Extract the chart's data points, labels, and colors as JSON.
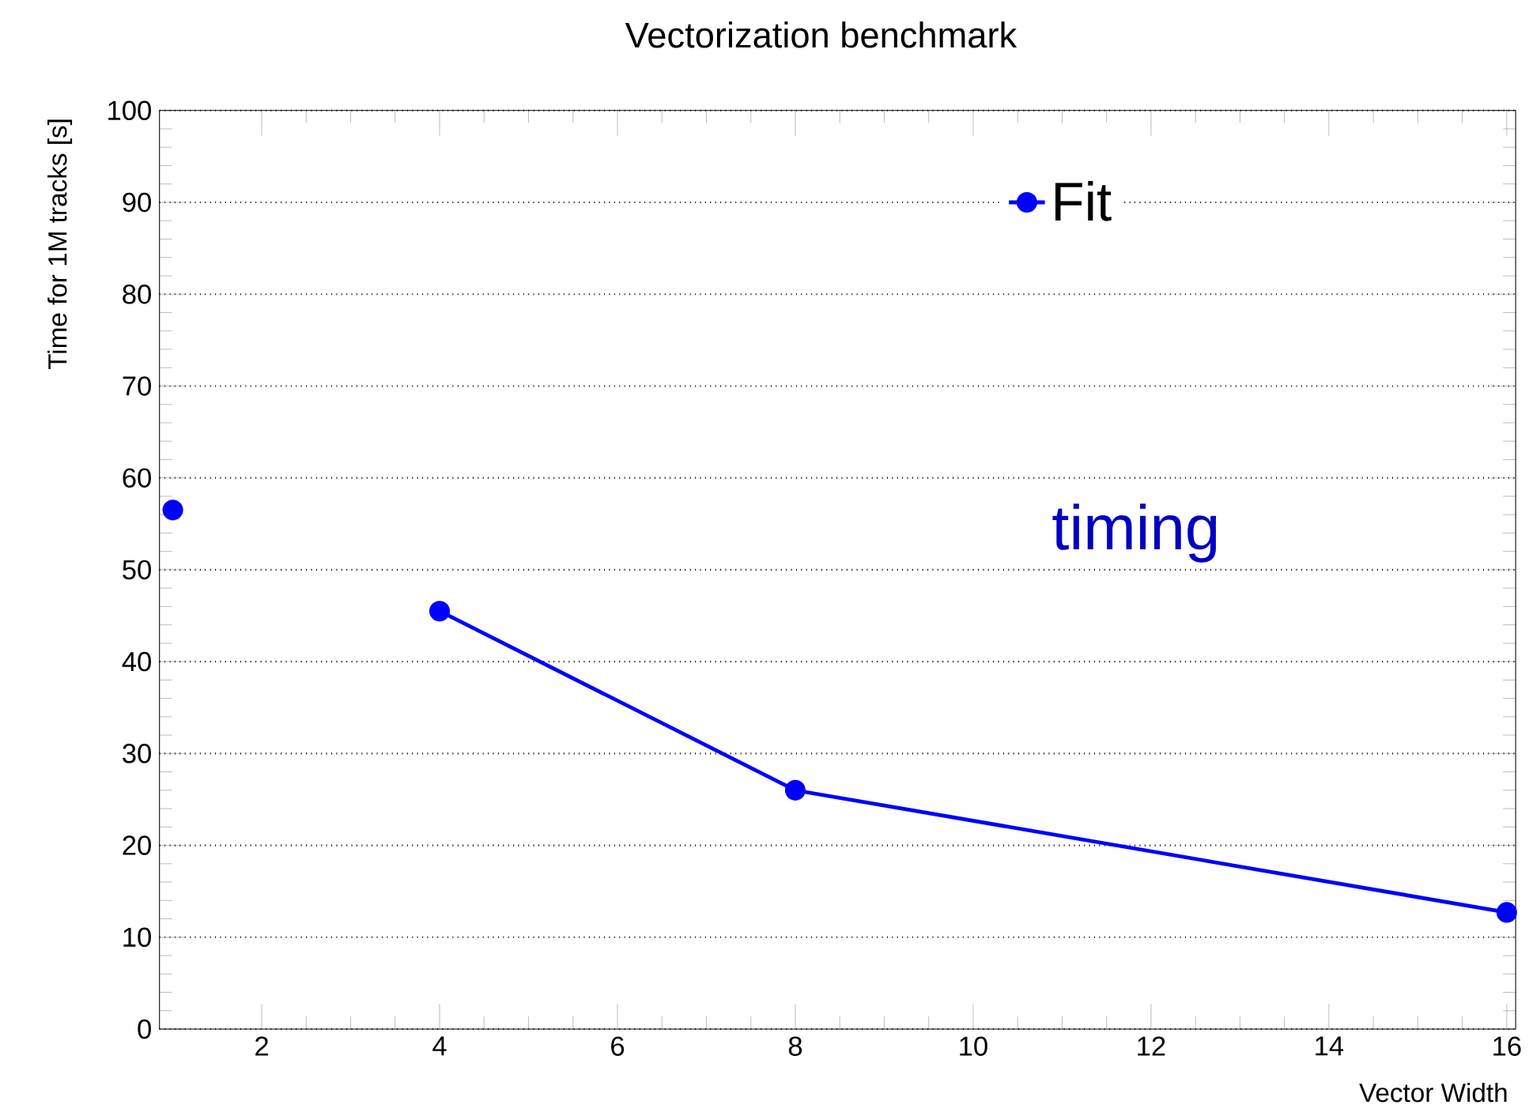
{
  "chart_data": {
    "type": "line",
    "title": "Vectorization benchmark",
    "xlabel": "Vector Width",
    "ylabel": "Time for 1M tracks [s]",
    "x": [
      1,
      2,
      4,
      8,
      16
    ],
    "series": [
      {
        "name": "Fit",
        "color": "#0000ff",
        "values": [
          56.5,
          null,
          45.5,
          26,
          12.7
        ]
      }
    ],
    "xlim": [
      0.85,
      16.1
    ],
    "xticks": [
      2,
      4,
      6,
      8,
      10,
      12,
      14,
      16
    ],
    "ylim": [
      0,
      100
    ],
    "yticks": [
      0,
      10,
      20,
      30,
      40,
      50,
      60,
      70,
      80,
      90,
      100
    ],
    "grid": "y",
    "legend": "top right",
    "marker": "circle",
    "line_style": "solid",
    "annotations": [
      "timing"
    ]
  }
}
